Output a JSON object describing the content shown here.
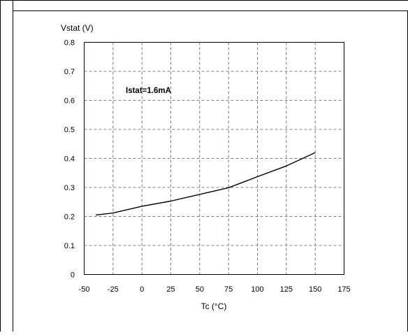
{
  "chart_data": {
    "type": "line",
    "title": "",
    "xlabel": "Tc (°C)",
    "ylabel": "Vstat (V)",
    "annotation": "Istat=1.6mA",
    "xlim": [
      -50,
      175
    ],
    "ylim": [
      0,
      0.8
    ],
    "xticks": [
      -50,
      -25,
      0,
      25,
      50,
      75,
      100,
      125,
      150,
      175
    ],
    "yticks": [
      0,
      0.1,
      0.2,
      0.3,
      0.4,
      0.5,
      0.6,
      0.7,
      0.8
    ],
    "xtick_labels": [
      "-50",
      "-25",
      "0",
      "25",
      "50",
      "75",
      "100",
      "125",
      "150",
      "175"
    ],
    "ytick_labels": [
      "0",
      "0.1",
      "0.2",
      "0.3",
      "0.4",
      "0.5",
      "0.6",
      "0.7",
      "0.8"
    ],
    "grid": true,
    "grid_style": "dashed",
    "series": [
      {
        "x": [
          -40,
          -25,
          0,
          25,
          50,
          75,
          100,
          125,
          150
        ],
        "y": [
          0.205,
          0.212,
          0.235,
          0.253,
          0.276,
          0.299,
          0.337,
          0.374,
          0.42
        ],
        "color": "#000000"
      }
    ]
  }
}
